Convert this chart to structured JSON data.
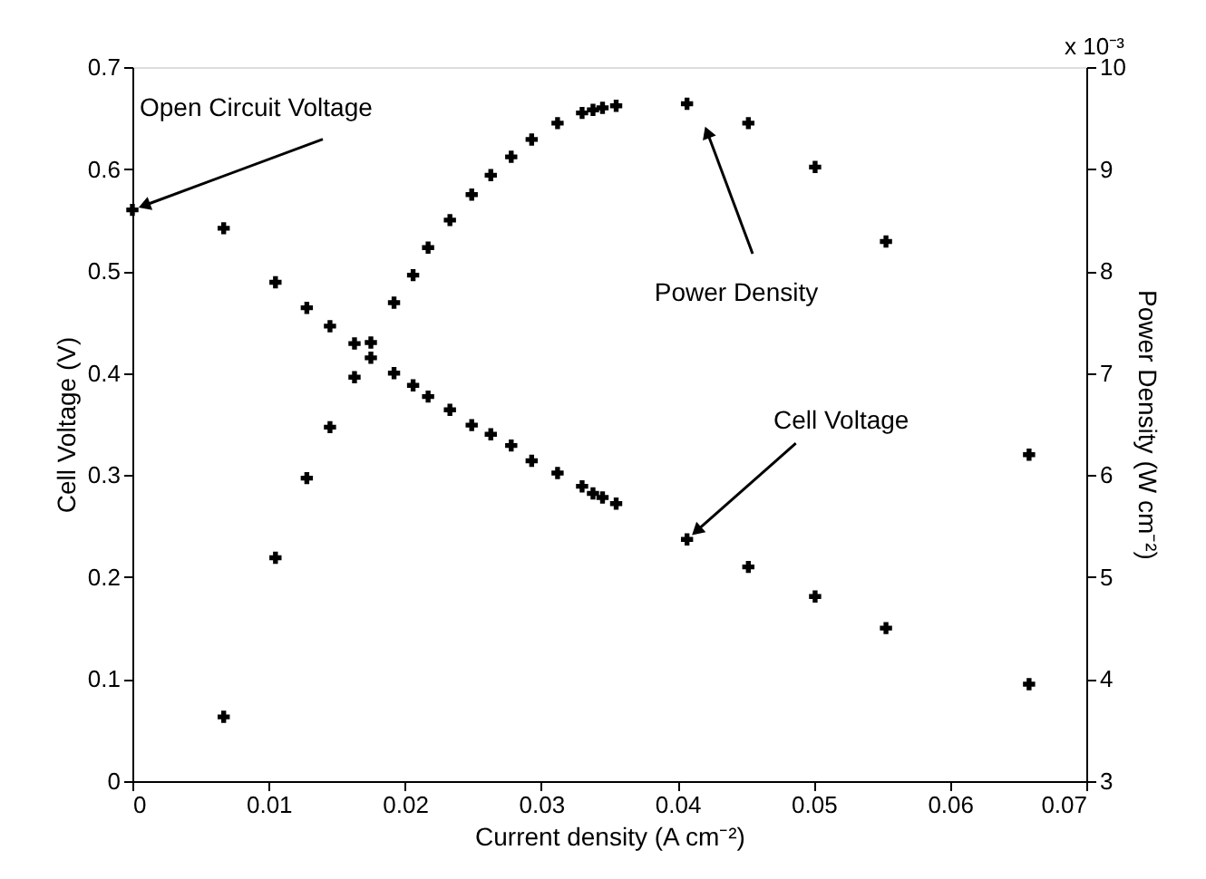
{
  "chart_data": {
    "type": "scatter",
    "xlabel": "Current density (A cm⁻²)",
    "ylabel": "Cell Voltage (V)",
    "y2label": "Power Density (W cm⁻²)",
    "xlim": [
      0,
      0.07
    ],
    "xticks": [
      0,
      0.01,
      0.02,
      0.03,
      0.04,
      0.05,
      0.06,
      0.07
    ],
    "ylim": [
      0,
      0.7
    ],
    "yticks": [
      0,
      0.1,
      0.2,
      0.3,
      0.4,
      0.5,
      0.6,
      0.7
    ],
    "y2lim": [
      3,
      10
    ],
    "y2ticks": [
      3,
      4,
      5,
      6,
      7,
      8,
      9,
      10
    ],
    "grid": false,
    "marker": "cross",
    "series": [
      {
        "color": "#000000",
        "x": [
          0,
          0.0067,
          0.0105,
          0.0128,
          0.0145,
          0.0163,
          0.0175,
          0.0192,
          0.0206,
          0.0217,
          0.0233,
          0.0249,
          0.0263,
          0.0278,
          0.0293,
          0.0312,
          0.033,
          0.0338,
          0.0345,
          0.0355,
          0.0407,
          0.0452,
          0.0501,
          0.0553,
          0.0658
        ],
        "values": [
          0.56,
          0.542,
          0.489,
          0.464,
          0.446,
          0.429,
          0.415,
          0.4,
          0.388,
          0.377,
          0.364,
          0.349,
          0.34,
          0.329,
          0.314,
          0.302,
          0.289,
          0.282,
          0.278,
          0.272,
          0.237,
          0.21,
          0.181,
          0.15,
          0.095
        ]
      },
      {
        "color": "#000000",
        "axis": "y2",
        "x": [
          0.0067,
          0.0105,
          0.0128,
          0.0145,
          0.0163,
          0.0175,
          0.0192,
          0.0206,
          0.0217,
          0.0233,
          0.0249,
          0.0263,
          0.0278,
          0.0293,
          0.0312,
          0.033,
          0.0338,
          0.0345,
          0.0355,
          0.0407,
          0.0452,
          0.0501,
          0.0553,
          0.0658
        ],
        "values": [
          3.63,
          5.19,
          5.97,
          6.47,
          6.96,
          7.3,
          7.69,
          7.96,
          8.23,
          8.5,
          8.75,
          8.94,
          9.12,
          9.29,
          9.45,
          9.55,
          9.58,
          9.6,
          9.62,
          9.64,
          9.45,
          9.02,
          8.29,
          6.2
        ]
      }
    ],
    "annotations": [
      {
        "text": "Open Circuit Voltage",
        "x": 0,
        "y": 0.56
      },
      "Power Density",
      {
        "text": "Cell Voltage",
        "x": 0.0407,
        "y": 0.237
      },
      "x 10⁻³"
    ]
  }
}
